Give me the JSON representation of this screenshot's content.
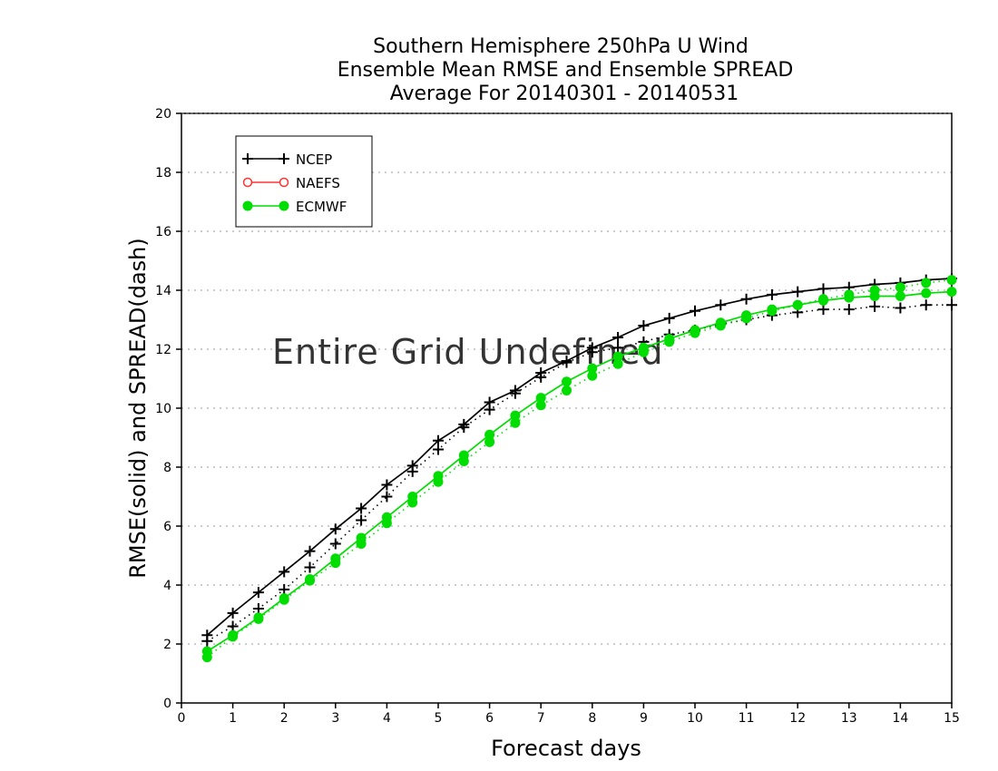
{
  "chart_data": {
    "type": "line",
    "title_lines": [
      "Southern Hemisphere 250hPa U Wind",
      "Ensemble Mean RMSE and Ensemble SPREAD",
      "Average For 20140301 - 20140531"
    ],
    "xlabel": "Forecast days",
    "ylabel": "RMSE(solid) and SPREAD(dash)",
    "xlim": [
      0,
      15
    ],
    "ylim": [
      0,
      20
    ],
    "x_ticks": [
      0,
      1,
      2,
      3,
      4,
      5,
      6,
      7,
      8,
      9,
      10,
      11,
      12,
      13,
      14,
      15
    ],
    "y_ticks": [
      0,
      2,
      4,
      6,
      8,
      10,
      12,
      14,
      16,
      18,
      20
    ],
    "grid": "horizontal dotted",
    "legend_position": "top-left",
    "annotation": "Entire Grid Undefined",
    "x": [
      0.5,
      1,
      1.5,
      2,
      2.5,
      3,
      3.5,
      4,
      4.5,
      5,
      5.5,
      6,
      6.5,
      7,
      7.5,
      8,
      8.5,
      9,
      9.5,
      10,
      10.5,
      11,
      11.5,
      12,
      12.5,
      13,
      13.5,
      14,
      14.5,
      15
    ],
    "legend": [
      {
        "name": "NCEP",
        "color": "#000000",
        "marker": "plus"
      },
      {
        "name": "NAEFS",
        "color": "#ff3333",
        "marker": "open-circle"
      },
      {
        "name": "ECMWF",
        "color": "#00dd00",
        "marker": "filled-circle"
      }
    ],
    "series": [
      {
        "name": "NCEP",
        "metric": "RMSE",
        "style": "solid",
        "color": "#000000",
        "marker": "plus",
        "values": [
          2.3,
          3.05,
          3.75,
          4.45,
          5.15,
          5.9,
          6.6,
          7.4,
          8.05,
          8.9,
          9.45,
          10.2,
          10.6,
          11.2,
          11.6,
          12.05,
          12.4,
          12.8,
          13.05,
          13.3,
          13.5,
          13.7,
          13.85,
          13.95,
          14.05,
          14.1,
          14.2,
          14.25,
          14.35,
          14.4
        ]
      },
      {
        "name": "NCEP",
        "metric": "SPREAD",
        "style": "dash",
        "color": "#000000",
        "marker": "plus",
        "values": [
          2.1,
          2.6,
          3.2,
          3.85,
          4.6,
          5.4,
          6.2,
          7.0,
          7.85,
          8.6,
          9.35,
          9.95,
          10.5,
          11.05,
          11.55,
          11.9,
          12.05,
          12.25,
          12.5,
          12.65,
          12.85,
          13.0,
          13.15,
          13.25,
          13.35,
          13.35,
          13.45,
          13.4,
          13.5,
          13.5
        ]
      },
      {
        "name": "ECMWF",
        "metric": "RMSE",
        "style": "solid",
        "color": "#00dd00",
        "marker": "filled-circle",
        "values": [
          1.75,
          2.3,
          2.9,
          3.55,
          4.2,
          4.9,
          5.6,
          6.3,
          7.0,
          7.7,
          8.4,
          9.1,
          9.75,
          10.35,
          10.9,
          11.35,
          11.75,
          12.05,
          12.35,
          12.65,
          12.9,
          13.15,
          13.35,
          13.5,
          13.65,
          13.75,
          13.8,
          13.8,
          13.9,
          13.95
        ]
      },
      {
        "name": "ECMWF",
        "metric": "SPREAD",
        "style": "dash",
        "color": "#00dd00",
        "marker": "filled-circle",
        "values": [
          1.55,
          2.25,
          2.85,
          3.5,
          4.15,
          4.75,
          5.4,
          6.1,
          6.8,
          7.5,
          8.2,
          8.85,
          9.5,
          10.1,
          10.6,
          11.1,
          11.5,
          11.9,
          12.25,
          12.55,
          12.8,
          13.05,
          13.3,
          13.5,
          13.7,
          13.85,
          14.0,
          14.1,
          14.25,
          14.35
        ]
      }
    ]
  }
}
